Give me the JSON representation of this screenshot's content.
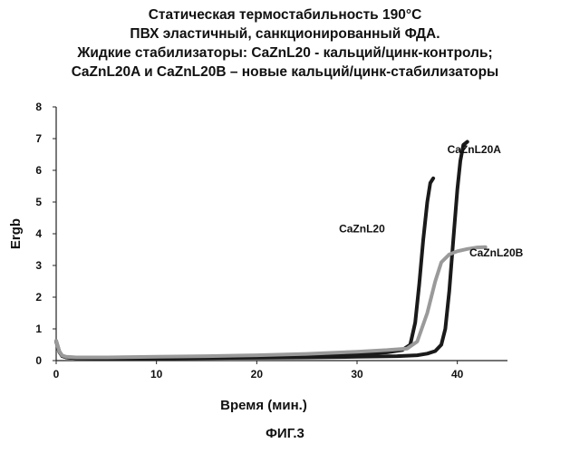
{
  "chart_data": {
    "type": "line",
    "title_lines": [
      "Статическая термостабильность 190°C",
      "ПВХ эластичный, санкционированный ФДА.",
      "Жидкие стабилизаторы: CaZnL20 - кальций/цинк-контроль;",
      "CaZnL20A и CaZnL20B – новые кальций/цинк-стабилизаторы"
    ],
    "xlabel": "Время (мин.)",
    "ylabel": "Ergb",
    "xlim": [
      0,
      45
    ],
    "ylim": [
      0,
      8
    ],
    "xticks": [
      0,
      10,
      20,
      30,
      40
    ],
    "yticks": [
      0,
      1,
      2,
      3,
      4,
      5,
      6,
      7,
      8
    ],
    "grid": false,
    "series": [
      {
        "name": "CaZnL20",
        "color": "#1a1a1a",
        "width": 4,
        "x": [
          0,
          0.3,
          0.6,
          1,
          2,
          5,
          10,
          15,
          20,
          25,
          30,
          33,
          34.5,
          35.3,
          35.8,
          36.2,
          36.6,
          37.0,
          37.3,
          37.6
        ],
        "y": [
          0.62,
          0.3,
          0.15,
          0.1,
          0.08,
          0.08,
          0.09,
          0.1,
          0.12,
          0.15,
          0.2,
          0.26,
          0.33,
          0.5,
          1.2,
          2.4,
          3.8,
          5.0,
          5.6,
          5.75
        ]
      },
      {
        "name": "CaZnL20A",
        "color": "#1a1a1a",
        "width": 4,
        "x": [
          0,
          0.3,
          0.6,
          1,
          2,
          5,
          10,
          15,
          20,
          25,
          30,
          34,
          36,
          37,
          37.8,
          38.4,
          38.8,
          39.2,
          39.6,
          40.0,
          40.3,
          40.6,
          41.0
        ],
        "y": [
          0.6,
          0.28,
          0.14,
          0.1,
          0.08,
          0.07,
          0.07,
          0.08,
          0.09,
          0.1,
          0.12,
          0.14,
          0.17,
          0.22,
          0.3,
          0.5,
          1.0,
          2.2,
          3.8,
          5.4,
          6.3,
          6.8,
          6.9
        ]
      },
      {
        "name": "CaZnL20B",
        "color": "#9a9a9a",
        "width": 4,
        "x": [
          0,
          0.3,
          0.6,
          1,
          2,
          5,
          10,
          15,
          20,
          25,
          30,
          33,
          35,
          36,
          37,
          37.8,
          38.4,
          39.2,
          40,
          41,
          42,
          42.8
        ],
        "y": [
          0.62,
          0.3,
          0.16,
          0.12,
          0.1,
          0.1,
          0.12,
          0.14,
          0.17,
          0.21,
          0.28,
          0.33,
          0.38,
          0.6,
          1.5,
          2.5,
          3.1,
          3.35,
          3.45,
          3.52,
          3.57,
          3.58
        ]
      }
    ],
    "annotations": [
      {
        "text": "CaZnL20A",
        "x": 39.0,
        "y": 6.55
      },
      {
        "text": "CaZnL20",
        "x": 28.2,
        "y": 4.05
      },
      {
        "text": "CaZnL20B",
        "x": 41.2,
        "y": 3.28
      }
    ]
  },
  "figure_label": "ФИГ.3"
}
